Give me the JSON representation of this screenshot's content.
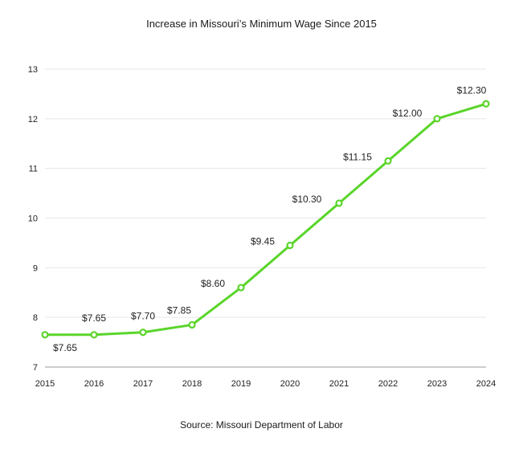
{
  "chart_data": {
    "type": "line",
    "title": "Increase in Missouri’s Minimum Wage Since 2015",
    "source": "Source: Missouri Department of Labor",
    "x": [
      "2015",
      "2016",
      "2017",
      "2018",
      "2019",
      "2020",
      "2021",
      "2022",
      "2023",
      "2024"
    ],
    "series": [
      {
        "values": [
          7.65,
          7.65,
          7.7,
          7.85,
          8.6,
          9.45,
          10.3,
          11.15,
          12.0,
          12.3
        ],
        "data_labels": [
          "$7.65",
          "$7.65",
          "$7.70",
          "$7.85",
          "$8.60",
          "$9.45",
          "$10.30",
          "$11.15",
          "$12.00",
          "$12.30"
        ],
        "color": "#5ad52a"
      }
    ],
    "y_ticks": [
      "7",
      "8",
      "9",
      "10",
      "11",
      "12",
      "13"
    ],
    "ylim": [
      7,
      13
    ],
    "grid": true,
    "legend": "none"
  }
}
